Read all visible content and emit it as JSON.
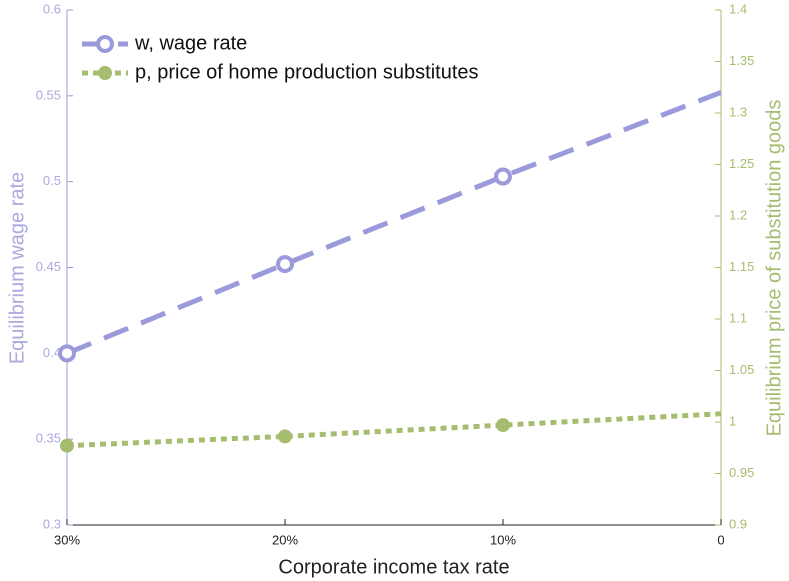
{
  "chart_data": {
    "type": "line",
    "xlabel": "Corporate income tax rate",
    "ylabel": "Equilibrium wage rate",
    "y2label": "Equilibrium price of substitution goods",
    "categories": [
      "30%",
      "20%",
      "10%",
      "0"
    ],
    "ylim": [
      0.3,
      0.6
    ],
    "yticks": [
      0.3,
      0.35,
      0.4,
      0.45,
      0.5,
      0.55,
      0.6
    ],
    "y2lim": [
      0.9,
      1.4
    ],
    "y2ticks": [
      0.9,
      0.95,
      1,
      1.05,
      1.1,
      1.15,
      1.2,
      1.25,
      1.3,
      1.35,
      1.4
    ],
    "legend": "upper left",
    "series": [
      {
        "name": "w, wage rate",
        "color": "#9b9bdc",
        "values": [
          0.4,
          0.452,
          0.503,
          0.552
        ]
      },
      {
        "name": "p, price of home production substitutes",
        "color": "#a6bd70",
        "axis": "y2",
        "values": [
          0.977,
          0.986,
          0.997,
          1.008
        ]
      }
    ]
  }
}
